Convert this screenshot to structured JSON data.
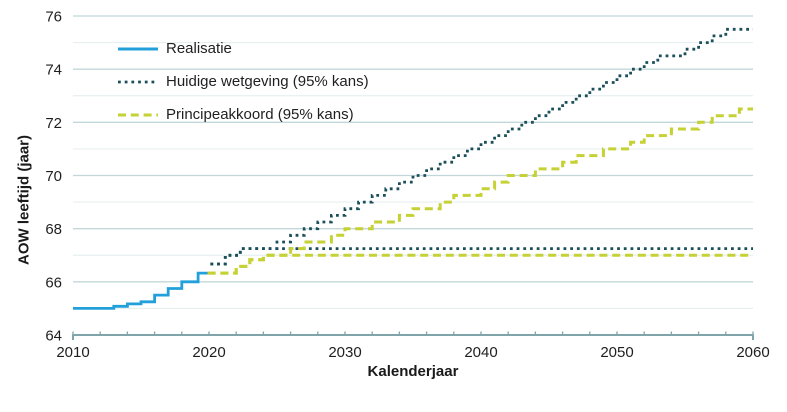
{
  "chart_data": {
    "type": "line",
    "title": "",
    "xlabel": "Kalenderjaar",
    "ylabel": "AOW leeftijd (jaar)",
    "xlim": [
      2010,
      2060
    ],
    "ylim": [
      64,
      76
    ],
    "x_major_ticks": [
      2010,
      2020,
      2030,
      2040,
      2050,
      2060
    ],
    "x_minor_tick_step": 2,
    "y_major_ticks": [
      64,
      66,
      68,
      70,
      72,
      74,
      76
    ],
    "y_minor_ticks": [
      65,
      67,
      69,
      71,
      73,
      75
    ],
    "grid": "horizontal-only",
    "legend_position": "top-left-inside",
    "colors": {
      "text": "#1f1f1f",
      "grid_major": "#c2d7da",
      "grid_minor": "#e7eff0",
      "axis": "#7fa5ab",
      "background": "#ffffff"
    },
    "series": [
      {
        "key": "huidige-onder",
        "name": "Huidige wetgeving (95% kans) ondergrens",
        "color": "#1b4f5a",
        "style": "dotted",
        "width": 2.8,
        "points": [
          [
            2020.1,
            66.67
          ],
          [
            2021.2,
            67.0
          ],
          [
            2022.3,
            67.25
          ]
        ],
        "end": 2060
      },
      {
        "key": "huidige-boven",
        "name": "Huidige wetgeving (95% kans) bovengrens",
        "color": "#1b4f5a",
        "style": "dotted",
        "width": 2.8,
        "points": [
          [
            2020.1,
            66.67
          ],
          [
            2021.2,
            67.0
          ],
          [
            2022.3,
            67.25
          ],
          [
            2025,
            67.5
          ],
          [
            2026,
            67.75
          ],
          [
            2027,
            68.0
          ],
          [
            2028,
            68.25
          ],
          [
            2029,
            68.5
          ],
          [
            2030,
            68.75
          ],
          [
            2031,
            69.0
          ],
          [
            2032,
            69.25
          ],
          [
            2033,
            69.5
          ],
          [
            2034,
            69.75
          ],
          [
            2035,
            70.0
          ],
          [
            2036,
            70.25
          ],
          [
            2037,
            70.5
          ],
          [
            2038,
            70.75
          ],
          [
            2039,
            71.0
          ],
          [
            2040,
            71.25
          ],
          [
            2041,
            71.5
          ],
          [
            2042,
            71.75
          ],
          [
            2043,
            72.0
          ],
          [
            2044,
            72.25
          ],
          [
            2045,
            72.5
          ],
          [
            2046,
            72.75
          ],
          [
            2047,
            73.0
          ],
          [
            2048,
            73.25
          ],
          [
            2049,
            73.5
          ],
          [
            2050,
            73.75
          ],
          [
            2051,
            74.0
          ],
          [
            2052,
            74.25
          ],
          [
            2053,
            74.5
          ],
          [
            2055,
            74.75
          ],
          [
            2056,
            75.0
          ],
          [
            2057,
            75.25
          ],
          [
            2058,
            75.5
          ]
        ],
        "end": 2060
      },
      {
        "key": "principe-onder",
        "name": "Principeakkoord (95% kans) ondergrens",
        "color": "#c5d134",
        "style": "dashed",
        "width": 3,
        "points": [
          [
            2019.9,
            66.33
          ],
          [
            2022,
            66.58
          ],
          [
            2023,
            66.83
          ],
          [
            2024,
            67.0
          ]
        ],
        "end": 2060
      },
      {
        "key": "principe-boven",
        "name": "Principeakkoord (95% kans) bovengrens",
        "color": "#c5d134",
        "style": "dashed",
        "width": 3,
        "points": [
          [
            2019.9,
            66.33
          ],
          [
            2022,
            66.58
          ],
          [
            2023,
            66.83
          ],
          [
            2024,
            67.0
          ],
          [
            2026,
            67.25
          ],
          [
            2027,
            67.5
          ],
          [
            2029,
            67.75
          ],
          [
            2030,
            68.0
          ],
          [
            2032,
            68.25
          ],
          [
            2034,
            68.5
          ],
          [
            2035,
            68.75
          ],
          [
            2037,
            69.0
          ],
          [
            2038,
            69.25
          ],
          [
            2040,
            69.5
          ],
          [
            2041,
            69.75
          ],
          [
            2042,
            70.0
          ],
          [
            2044,
            70.25
          ],
          [
            2046,
            70.5
          ],
          [
            2047,
            70.75
          ],
          [
            2049,
            71.0
          ],
          [
            2051,
            71.25
          ],
          [
            2052,
            71.5
          ],
          [
            2054,
            71.75
          ],
          [
            2056,
            72.0
          ],
          [
            2057,
            72.25
          ],
          [
            2059,
            72.5
          ]
        ],
        "end": 2060
      },
      {
        "key": "realisatie",
        "name": "Realisatie",
        "color": "#23a0da",
        "style": "solid",
        "width": 2.8,
        "points": [
          [
            2010,
            65.0
          ],
          [
            2013,
            65.08
          ],
          [
            2014,
            65.17
          ],
          [
            2015,
            65.25
          ],
          [
            2016,
            65.5
          ],
          [
            2017,
            65.75
          ],
          [
            2018,
            66.0
          ],
          [
            2019.2,
            66.33
          ]
        ],
        "end": 2019.9
      }
    ],
    "legend": [
      {
        "label": "Realisatie",
        "series_key": "realisatie"
      },
      {
        "label": "Huidige wetgeving (95% kans)",
        "series_key": "huidige-boven"
      },
      {
        "label": "Principeakkoord (95% kans)",
        "series_key": "principe-boven"
      }
    ]
  }
}
